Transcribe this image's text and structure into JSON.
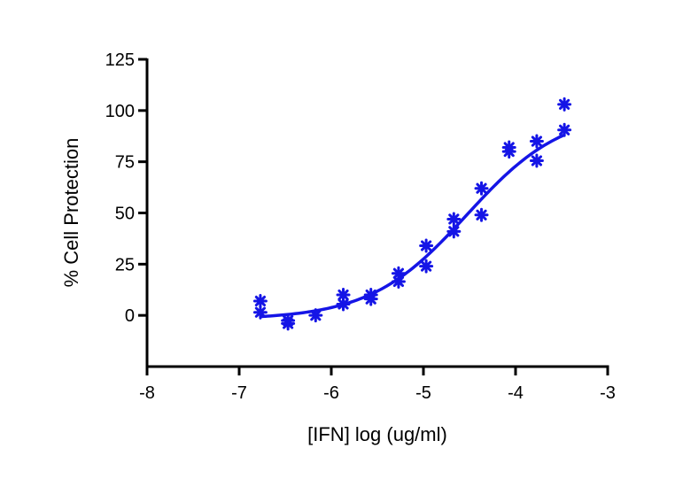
{
  "chart_data": {
    "type": "scatter",
    "title": "",
    "xlabel": "[IFN] log (ug/ml)",
    "ylabel": "% Cell Protection",
    "xlim": [
      -8,
      -3
    ],
    "ylim": [
      -25,
      125
    ],
    "xticks": [
      -8,
      -7,
      -6,
      -5,
      -4,
      -3
    ],
    "yticks": [
      0,
      25,
      50,
      75,
      100,
      125
    ],
    "grid": false,
    "legend": "none",
    "colors": {
      "data": "#1515e6",
      "axis": "#000000"
    },
    "marker": "asterisk",
    "points": [
      {
        "x": -6.77,
        "y": 7
      },
      {
        "x": -6.77,
        "y": 1.5
      },
      {
        "x": -6.47,
        "y": -4
      },
      {
        "x": -6.47,
        "y": -2.5
      },
      {
        "x": -6.17,
        "y": 0
      },
      {
        "x": -5.87,
        "y": 10
      },
      {
        "x": -5.87,
        "y": 5.5
      },
      {
        "x": -5.57,
        "y": 10
      },
      {
        "x": -5.57,
        "y": 8
      },
      {
        "x": -5.27,
        "y": 20.5
      },
      {
        "x": -5.27,
        "y": 16.5
      },
      {
        "x": -4.97,
        "y": 34
      },
      {
        "x": -4.97,
        "y": 24
      },
      {
        "x": -4.67,
        "y": 47
      },
      {
        "x": -4.67,
        "y": 41
      },
      {
        "x": -4.37,
        "y": 62
      },
      {
        "x": -4.37,
        "y": 49
      },
      {
        "x": -4.07,
        "y": 82
      },
      {
        "x": -4.07,
        "y": 80
      },
      {
        "x": -3.77,
        "y": 85
      },
      {
        "x": -3.77,
        "y": 75.5
      },
      {
        "x": -3.47,
        "y": 103
      },
      {
        "x": -3.47,
        "y": 90.5
      }
    ],
    "fit_curve": {
      "model": "sigmoidal",
      "bottom": -2,
      "top": 100,
      "logEC50": -4.53,
      "hillslope": 0.83,
      "x_range": [
        -6.77,
        -3.47
      ]
    }
  }
}
